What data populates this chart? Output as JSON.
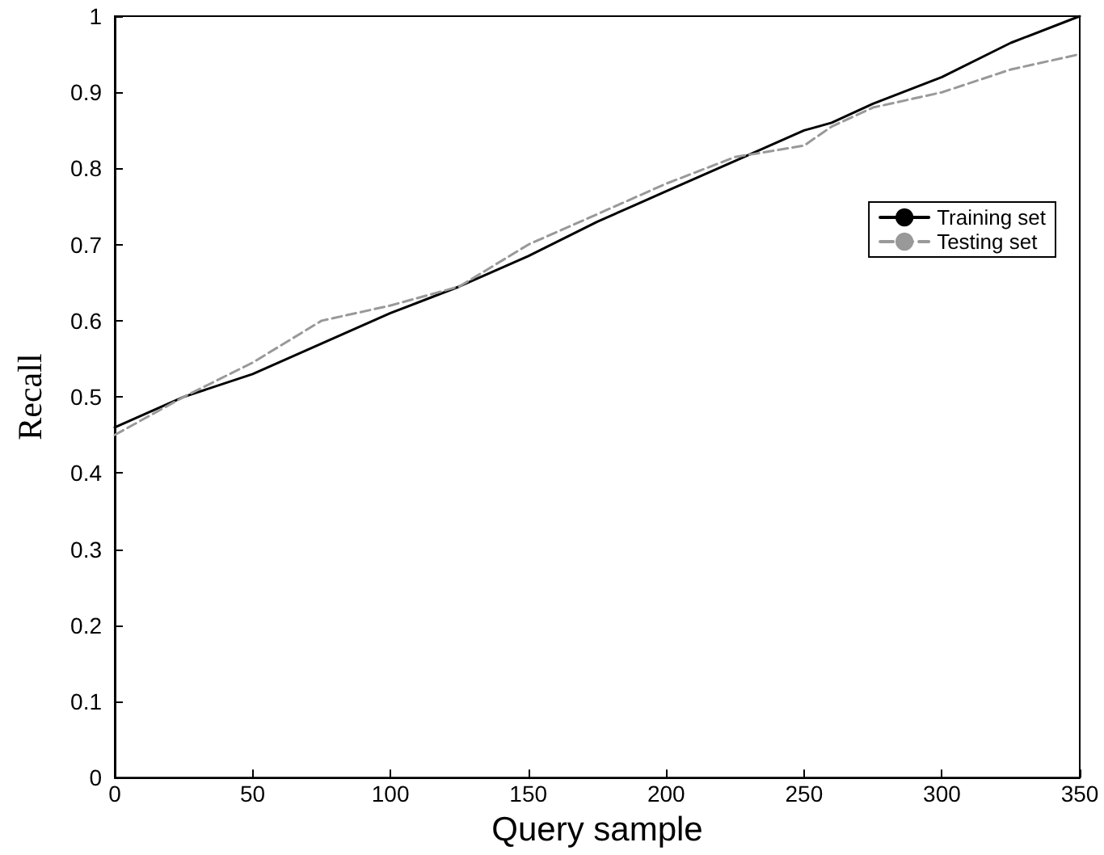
{
  "chart_data": {
    "type": "line",
    "xlabel": "Query sample",
    "ylabel": "Recall",
    "x": [
      0,
      25,
      50,
      75,
      100,
      125,
      150,
      175,
      200,
      225,
      250,
      260,
      275,
      300,
      325,
      350
    ],
    "series": [
      {
        "name": "Training set",
        "color": "#000000",
        "line_style": "solid",
        "values": [
          0.46,
          0.5,
          0.53,
          0.57,
          0.61,
          0.645,
          0.685,
          0.73,
          0.77,
          0.81,
          0.85,
          0.86,
          0.885,
          0.92,
          0.965,
          1.0
        ]
      },
      {
        "name": "Testing set",
        "color": "#999999",
        "line_style": "dashed",
        "values": [
          0.45,
          0.5,
          0.545,
          0.6,
          0.62,
          0.645,
          0.7,
          0.74,
          0.78,
          0.815,
          0.83,
          0.855,
          0.88,
          0.9,
          0.93,
          0.95
        ]
      }
    ],
    "xlim": [
      0,
      350
    ],
    "xticks": [
      0,
      50,
      100,
      150,
      200,
      250,
      300,
      350
    ],
    "ylim": [
      0,
      1
    ],
    "yticks": [
      0,
      0.1,
      0.2,
      0.3,
      0.4,
      0.5,
      0.6,
      0.7,
      0.8,
      0.9,
      1
    ],
    "grid": false,
    "legend": "right",
    "marker": "none"
  }
}
